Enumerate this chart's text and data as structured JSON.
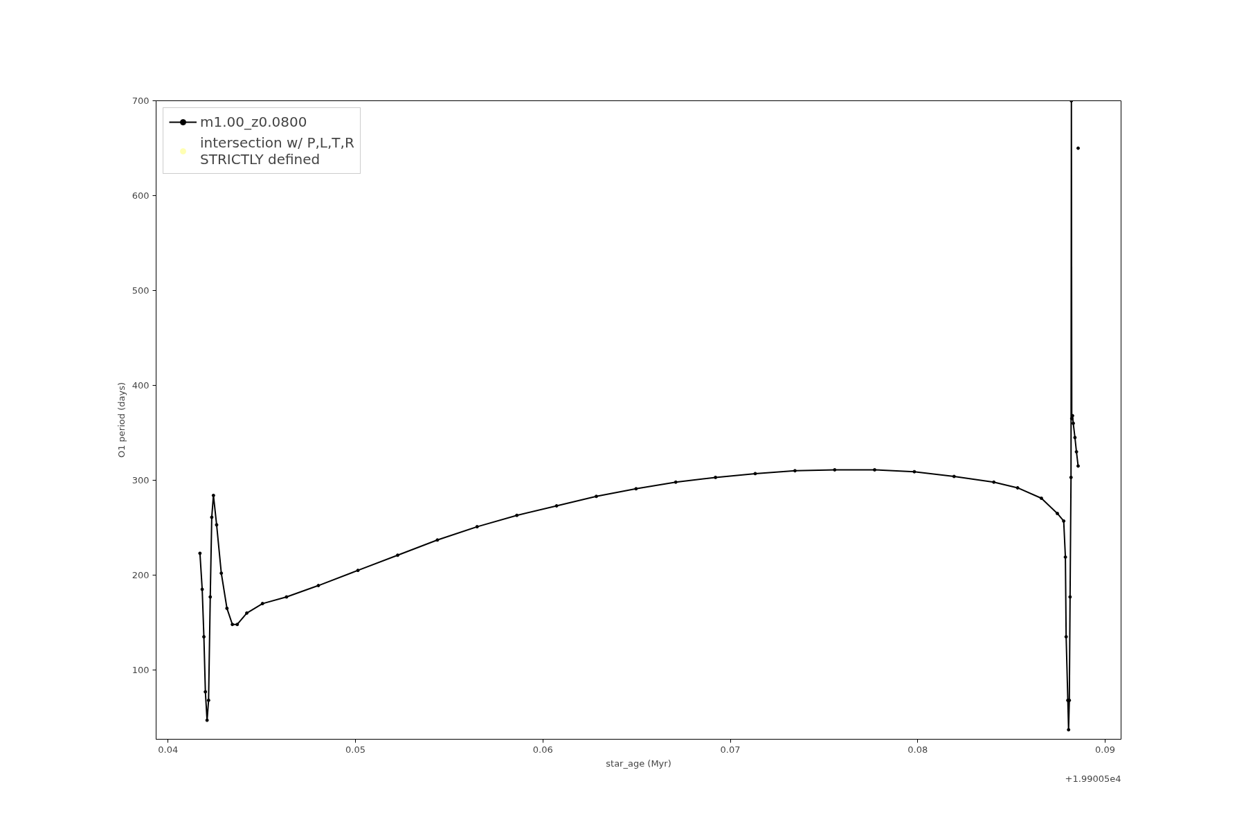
{
  "chart_data": {
    "type": "line",
    "xlabel": "star_age (Myr)",
    "ylabel": "O1 period (days)",
    "xlim": [
      0.03936,
      0.09085
    ],
    "ylim": [
      27,
      700
    ],
    "xticks": [
      0.04,
      0.05,
      0.06,
      0.07,
      0.08,
      0.09
    ],
    "yticks": [
      100,
      200,
      300,
      400,
      500,
      600,
      700
    ],
    "grid": false,
    "legend": "top left",
    "marker": "circle",
    "line_style": "solid",
    "annotations": [
      "+1.99005e4"
    ],
    "series": [
      {
        "name": "m1.00_z0.0800",
        "color": "#000000",
        "x": [
          0.0417,
          0.04182,
          0.04191,
          0.04199,
          0.04208,
          0.04216,
          0.04225,
          0.04233,
          0.04242,
          0.04259,
          0.04284,
          0.04314,
          0.04343,
          0.04369,
          0.0442,
          0.04504,
          0.04632,
          0.04802,
          0.05013,
          0.05225,
          0.05437,
          0.05649,
          0.05861,
          0.06073,
          0.06285,
          0.06497,
          0.06709,
          0.06921,
          0.07133,
          0.07345,
          0.07557,
          0.0777,
          0.07982,
          0.08194,
          0.08406,
          0.08533,
          0.0866,
          0.08745,
          0.08779,
          0.08788,
          0.08792,
          0.08801,
          0.08805,
          0.08809,
          0.08813,
          0.08818,
          0.0882,
          0.08822,
          0.08826,
          0.0883,
          0.08839,
          0.08847,
          0.08856,
          null,
          0.08856
        ],
        "values": [
          223,
          185,
          135,
          77,
          47,
          68,
          177,
          261,
          284,
          253,
          202,
          165,
          148,
          148,
          160,
          170,
          177,
          189,
          205,
          221,
          237,
          251,
          263,
          273,
          283,
          291,
          298,
          303,
          307,
          310,
          311,
          311,
          309,
          304,
          298,
          292,
          281,
          265,
          257,
          219,
          135,
          68,
          37,
          68,
          177,
          303,
          700,
          365,
          368,
          360,
          345,
          330,
          315,
          null,
          650
        ]
      },
      {
        "name": "intersection w/ P,L,T,R\nSTRICTLY defined",
        "color": "#ffffb3",
        "type": "scatter"
      }
    ]
  }
}
